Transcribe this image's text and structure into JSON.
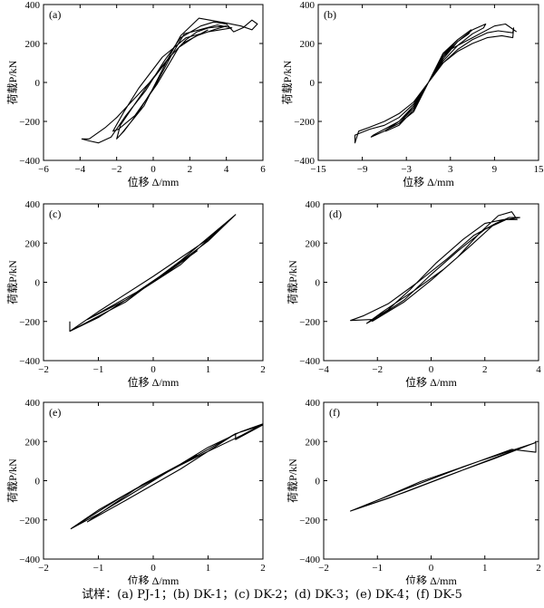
{
  "caption": "试样：(a) PJ-1；(b) DK-1；(c) DK-2；(d) DK-3；(e) DK-4；(f) DK-5",
  "chart_data": [
    {
      "type": "line",
      "panel_label": "(a)",
      "specimen": "PJ-1",
      "xlabel": "位移 Δ/mm",
      "ylabel": "荷载P/kN",
      "xlim": [
        -6,
        6
      ],
      "ylim": [
        -400,
        400
      ],
      "xticks": [
        -6,
        -4,
        -2,
        0,
        2,
        4,
        6
      ],
      "yticks": [
        -400,
        -200,
        0,
        200,
        400
      ],
      "series": [
        {
          "x": [
            -1.8,
            -0.5,
            0.8,
            1.5,
            2.5,
            4.0,
            4.8,
            5.4,
            5.7,
            5.4,
            4.9,
            4.4,
            4.0,
            3.3,
            2.6,
            1.5,
            0.6,
            -0.4,
            -1.5,
            -2.3,
            -3.0,
            -3.5,
            -3.9,
            -3.5,
            -2.6,
            -2.0,
            -1.2,
            0.0,
            1.0,
            1.8,
            2.4,
            3.0,
            4.0,
            3.3,
            2.4,
            1.6,
            0.8,
            -0.2,
            -1.0,
            -1.8,
            -2.0,
            -1.6,
            -0.8,
            0.2,
            1.0,
            1.7,
            3.5,
            4.3,
            3.0,
            1.8,
            0.5,
            -0.8,
            -1.6,
            -2.2,
            -1.9,
            -1.0,
            0.2,
            1.4,
            2.2,
            3.0
          ],
          "y": [
            -270,
            -120,
            120,
            240,
            330,
            305,
            290,
            270,
            300,
            320,
            280,
            260,
            300,
            310,
            290,
            230,
            110,
            -40,
            -170,
            -280,
            -310,
            -300,
            -290,
            -290,
            -230,
            -180,
            -100,
            20,
            140,
            220,
            260,
            280,
            290,
            270,
            240,
            200,
            120,
            0,
            -110,
            -220,
            -290,
            -250,
            -150,
            0,
            140,
            250,
            295,
            280,
            260,
            230,
            130,
            -30,
            -150,
            -250,
            -240,
            -170,
            -10,
            180,
            230,
            270
          ]
        }
      ]
    },
    {
      "type": "line",
      "panel_label": "(b)",
      "specimen": "DK-1",
      "xlabel": "位移 Δ/mm",
      "ylabel": "荷载P/kN",
      "xlim": [
        -15,
        15
      ],
      "ylim": [
        -400,
        400
      ],
      "xticks": [
        -15,
        -9,
        -3,
        3,
        9,
        15
      ],
      "yticks": [
        -400,
        -200,
        0,
        200,
        400
      ],
      "series": [
        {
          "x": [
            0,
            2,
            4,
            6,
            8,
            9.5,
            11.5,
            11.6,
            11.5,
            10,
            8,
            6,
            4,
            2,
            0,
            -2,
            -4,
            -6,
            -8,
            -9.5,
            -10,
            -10,
            -8,
            -6,
            -4,
            -2,
            0,
            2,
            4,
            6,
            7.5,
            7.8,
            6,
            4,
            2,
            0,
            -2,
            -4,
            -6,
            -7.5,
            -7.8,
            -6,
            -4,
            -2,
            0,
            2,
            4,
            5.5,
            5.8,
            4,
            2,
            0,
            -2,
            -4,
            -5.6,
            -5.8,
            -4,
            -2,
            0,
            2,
            3.5,
            4,
            2,
            0,
            -2,
            -3.5,
            -4,
            -2,
            0,
            2,
            6,
            9,
            10.5,
            12
          ],
          "y": [
            0,
            100,
            170,
            220,
            255,
            265,
            255,
            280,
            230,
            240,
            230,
            200,
            160,
            100,
            0,
            -100,
            -160,
            -200,
            -230,
            -250,
            -310,
            -270,
            -240,
            -220,
            -180,
            -110,
            0,
            110,
            190,
            250,
            280,
            300,
            270,
            210,
            130,
            0,
            -120,
            -200,
            -240,
            -270,
            -280,
            -250,
            -200,
            -130,
            0,
            120,
            210,
            250,
            270,
            220,
            140,
            0,
            -130,
            -210,
            -240,
            -250,
            -220,
            -140,
            0,
            130,
            200,
            220,
            150,
            0,
            -140,
            -200,
            -210,
            -150,
            0,
            150,
            230,
            290,
            300,
            260
          ]
        }
      ]
    },
    {
      "type": "line",
      "panel_label": "(c)",
      "specimen": "DK-2",
      "xlabel": "位移 Δ/mm",
      "ylabel": "荷载P/kN",
      "xlim": [
        -2,
        2
      ],
      "ylim": [
        -400,
        400
      ],
      "xticks": [
        -2,
        -1,
        0,
        1,
        2
      ],
      "yticks": [
        -400,
        -200,
        0,
        200,
        400
      ],
      "series": [
        {
          "x": [
            -1.52,
            -1.52,
            -1.0,
            0.0,
            1.0,
            1.5,
            1.0,
            0.0,
            -1.0,
            -1.52,
            -0.5,
            0.5,
            1.5,
            0.5,
            -0.5,
            -1.2,
            -0.3,
            0.8,
            0.2
          ],
          "y": [
            -200,
            -250,
            -180,
            0,
            210,
            345,
            220,
            30,
            -150,
            -250,
            -100,
            110,
            345,
            90,
            -90,
            -190,
            -50,
            160,
            40
          ]
        }
      ]
    },
    {
      "type": "line",
      "panel_label": "(d)",
      "specimen": "DK-3",
      "xlabel": "位移 Δ/mm",
      "ylabel": "荷载P/kN",
      "xlim": [
        -4,
        4
      ],
      "ylim": [
        -400,
        400
      ],
      "xticks": [
        -4,
        -2,
        0,
        2,
        4
      ],
      "yticks": [
        -400,
        -200,
        0,
        200,
        400
      ],
      "series": [
        {
          "x": [
            -2.2,
            -1.0,
            0.0,
            1.0,
            1.8,
            2.5,
            3.0,
            3.2,
            2.7,
            2.0,
            1.2,
            0.2,
            -0.8,
            -1.6,
            -2.2,
            -3.0,
            -2.5,
            -1.6,
            -0.5,
            0.6,
            1.6,
            2.4,
            2.9,
            3.3,
            2.8,
            2.0,
            1.0,
            0.0,
            -1.0,
            -2.0,
            -2.4,
            -1.8,
            -0.6,
            0.5,
            1.5,
            2.3
          ],
          "y": [
            -200,
            -100,
            10,
            130,
            250,
            340,
            360,
            320,
            320,
            300,
            220,
            100,
            -40,
            -140,
            -190,
            -195,
            -170,
            -110,
            0,
            120,
            240,
            300,
            330,
            330,
            320,
            270,
            160,
            40,
            -90,
            -180,
            -210,
            -150,
            -40,
            70,
            190,
            290
          ]
        }
      ]
    },
    {
      "type": "line",
      "panel_label": "(e)",
      "specimen": "DK-4",
      "xlabel": "位移 Δ/mm",
      "ylabel": "荷载P/kN",
      "xlim": [
        -2,
        2
      ],
      "ylim": [
        -400,
        400
      ],
      "xticks": [
        -2,
        -1,
        0,
        1,
        2
      ],
      "yticks": [
        -400,
        -200,
        0,
        200,
        400
      ],
      "series": [
        {
          "x": [
            -1.5,
            -1.0,
            0.0,
            1.0,
            1.6,
            2.0,
            1.6,
            1.0,
            0.0,
            -1.0,
            -1.5,
            -0.5,
            0.5,
            1.5,
            2.0,
            1.5,
            1.5,
            0.5,
            -0.5,
            -1.2,
            -0.2,
            0.8
          ],
          "y": [
            -245,
            -170,
            0,
            170,
            250,
            290,
            230,
            150,
            10,
            -150,
            -245,
            -70,
            80,
            240,
            285,
            210,
            240,
            60,
            -100,
            -210,
            -20,
            130
          ]
        }
      ]
    },
    {
      "type": "line",
      "panel_label": "(f)",
      "specimen": "DK-5",
      "xlabel": "位移 Δ/mm",
      "ylabel": "荷载P/kN",
      "xlim": [
        -2,
        2
      ],
      "ylim": [
        -400,
        400
      ],
      "xticks": [
        -2,
        -1,
        0,
        1,
        2
      ],
      "yticks": [
        -400,
        -200,
        0,
        200,
        400
      ],
      "series": [
        {
          "x": [
            -1.5,
            -0.5,
            0.5,
            1.5,
            1.95,
            1.95,
            1.5,
            0.5,
            -0.5,
            -1.5,
            -0.8,
            0.3,
            1.2,
            1.9,
            0.9,
            -0.2,
            -1.0
          ],
          "y": [
            -155,
            -60,
            45,
            150,
            195,
            145,
            160,
            60,
            -45,
            -155,
            -90,
            25,
            115,
            190,
            100,
            -5,
            -100
          ]
        }
      ]
    }
  ]
}
